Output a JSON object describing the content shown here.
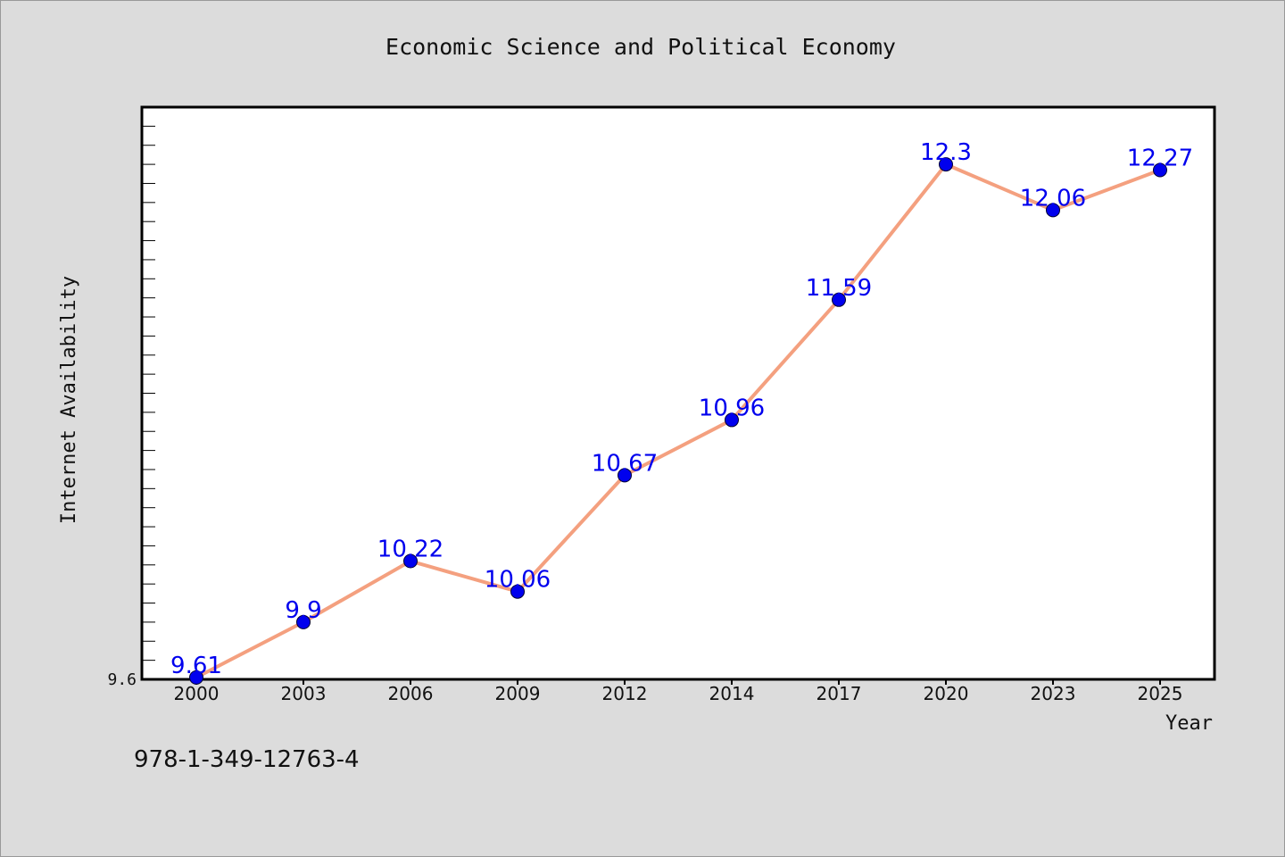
{
  "chart_data": {
    "type": "line",
    "title": "Economic Science and Political Economy",
    "xlabel": "Year",
    "ylabel": "Internet Availability",
    "categories": [
      "2000",
      "2003",
      "2006",
      "2009",
      "2012",
      "2014",
      "2017",
      "2020",
      "2023",
      "2025"
    ],
    "series": [
      {
        "values": [
          9.61,
          9.9,
          10.22,
          10.06,
          10.67,
          10.96,
          11.59,
          12.3,
          12.06,
          12.27
        ],
        "line_color": "#f4a07f",
        "marker_color": "#0000ee",
        "label_color": "#0000ee"
      }
    ],
    "data_labels": [
      "9.61",
      "9.9",
      "10.22",
      "10.06",
      "10.67",
      "10.96",
      "11.59",
      "12.3",
      "12.06",
      "12.27"
    ],
    "y_tick_labels": [
      {
        "value": 9.6,
        "label": "9.6"
      }
    ],
    "ylim": [
      9.6,
      12.6
    ],
    "grid": false,
    "legend": "none"
  },
  "footer": {
    "isbn": "978-1-349-12763-4"
  }
}
